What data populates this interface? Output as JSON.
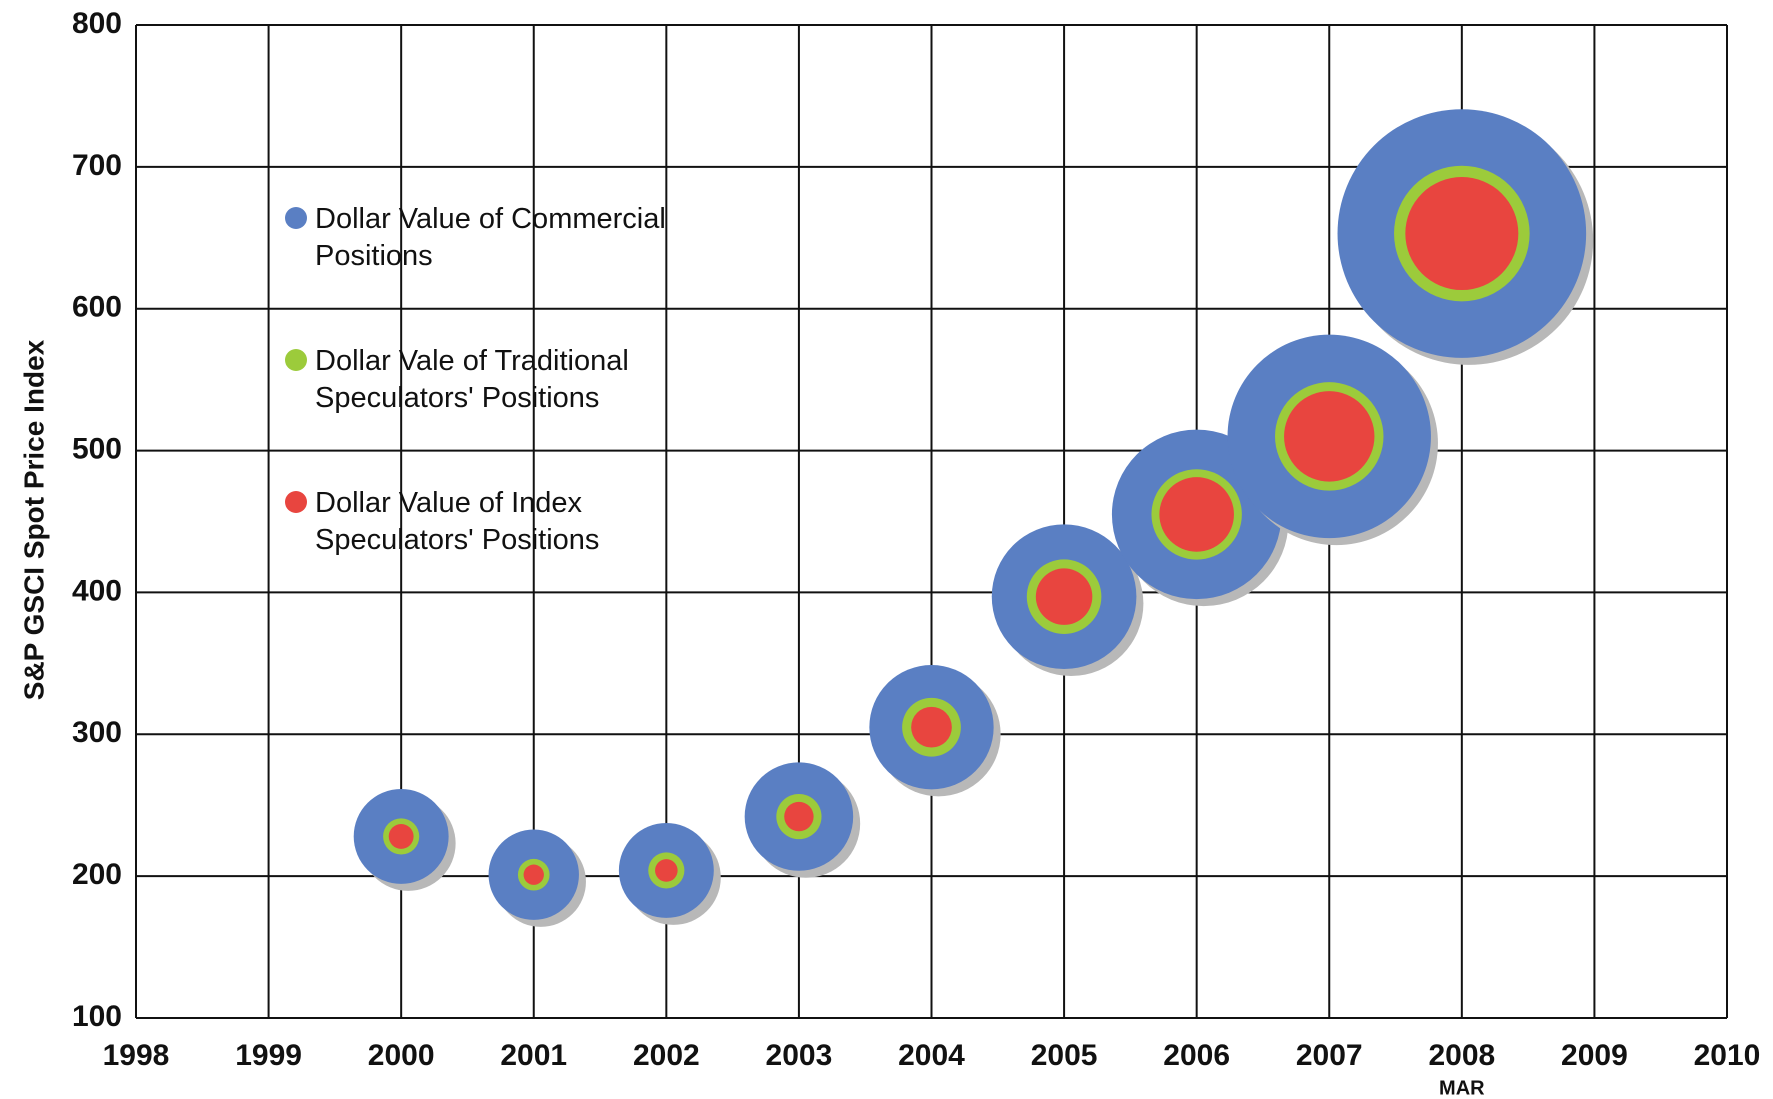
{
  "chart_data": {
    "type": "bubble",
    "y_label": "S&P GSCI Spot Price Index",
    "annotation": "MAR",
    "x": [
      2000,
      2001,
      2002,
      2003,
      2004,
      2005,
      2006,
      2007,
      2008
    ],
    "series": [
      {
        "name": "Dollar Value of Commercial Positions",
        "color": "#5a7fc3",
        "values": [
          228,
          201,
          204,
          242,
          305,
          397,
          455,
          510,
          653
        ],
        "sizes": [
          42,
          40,
          42,
          48,
          55,
          64,
          75,
          90,
          110
        ]
      },
      {
        "name": "Dollar Vale of Traditional Speculators' Positions",
        "color": "#9ccb3b",
        "values": [
          228,
          201,
          204,
          242,
          305,
          397,
          455,
          510,
          653
        ],
        "sizes": [
          16,
          14,
          16,
          20,
          26,
          33,
          40,
          48,
          60
        ]
      },
      {
        "name": "Dollar Value of Index Speculators' Positions",
        "color": "#e8453f",
        "values": [
          228,
          201,
          204,
          242,
          305,
          397,
          455,
          510,
          653
        ],
        "sizes": [
          11,
          9,
          10,
          13,
          18,
          25,
          33,
          40,
          50
        ]
      }
    ],
    "xlim": [
      1998,
      2010
    ],
    "xticks": [
      1998,
      1999,
      2000,
      2001,
      2002,
      2003,
      2004,
      2005,
      2006,
      2007,
      2008,
      2009,
      2010
    ],
    "ylim": [
      100,
      800
    ],
    "yticks": [
      100,
      200,
      300,
      400,
      500,
      600,
      700,
      800
    ],
    "grid": true
  }
}
